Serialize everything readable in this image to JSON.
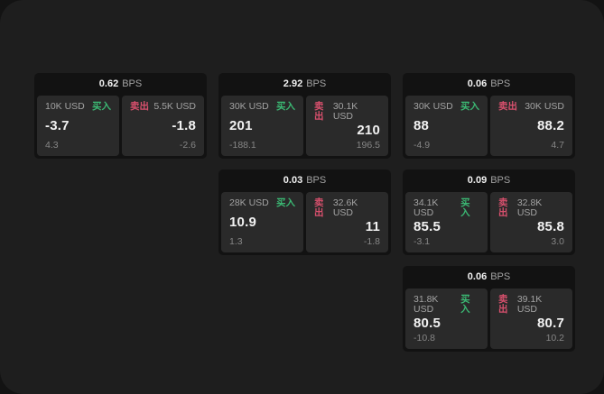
{
  "labels": {
    "bps_unit": "BPS",
    "buy": "买入",
    "sell": "卖出"
  },
  "colors": {
    "window_bg": "#1e1e1e",
    "card_bg": "#121212",
    "panel_bg": "#2a2a2a",
    "buy_color": "#3bb873",
    "sell_color": "#d8506d",
    "text_primary": "#f2f2f2",
    "text_secondary": "#a3a3a3",
    "text_tertiary": "#868686"
  },
  "cards": [
    {
      "bps": "0.62",
      "buy": {
        "amount": "10K USD",
        "value": "-3.7",
        "sub": "4.3"
      },
      "sell": {
        "amount": "5.5K USD",
        "value": "-1.8",
        "sub": "-2.6"
      }
    },
    {
      "bps": "2.92",
      "buy": {
        "amount": "30K USD",
        "value": "201",
        "sub": "-188.1"
      },
      "sell": {
        "amount": "30.1K USD",
        "value": "210",
        "sub": "196.5"
      }
    },
    {
      "bps": "0.06",
      "buy": {
        "amount": "30K USD",
        "value": "88",
        "sub": "-4.9"
      },
      "sell": {
        "amount": "30K USD",
        "value": "88.2",
        "sub": "4.7"
      }
    },
    {
      "bps": "0.03",
      "buy": {
        "amount": "28K USD",
        "value": "10.9",
        "sub": "1.3"
      },
      "sell": {
        "amount": "32.6K USD",
        "value": "11",
        "sub": "-1.8"
      }
    },
    {
      "bps": "0.09",
      "buy": {
        "amount": "34.1K USD",
        "value": "85.5",
        "sub": "-3.1"
      },
      "sell": {
        "amount": "32.8K USD",
        "value": "85.8",
        "sub": "3.0"
      }
    },
    {
      "bps": "0.06",
      "buy": {
        "amount": "31.8K USD",
        "value": "80.5",
        "sub": "-10.8"
      },
      "sell": {
        "amount": "39.1K USD",
        "value": "80.7",
        "sub": "10.2"
      }
    }
  ]
}
